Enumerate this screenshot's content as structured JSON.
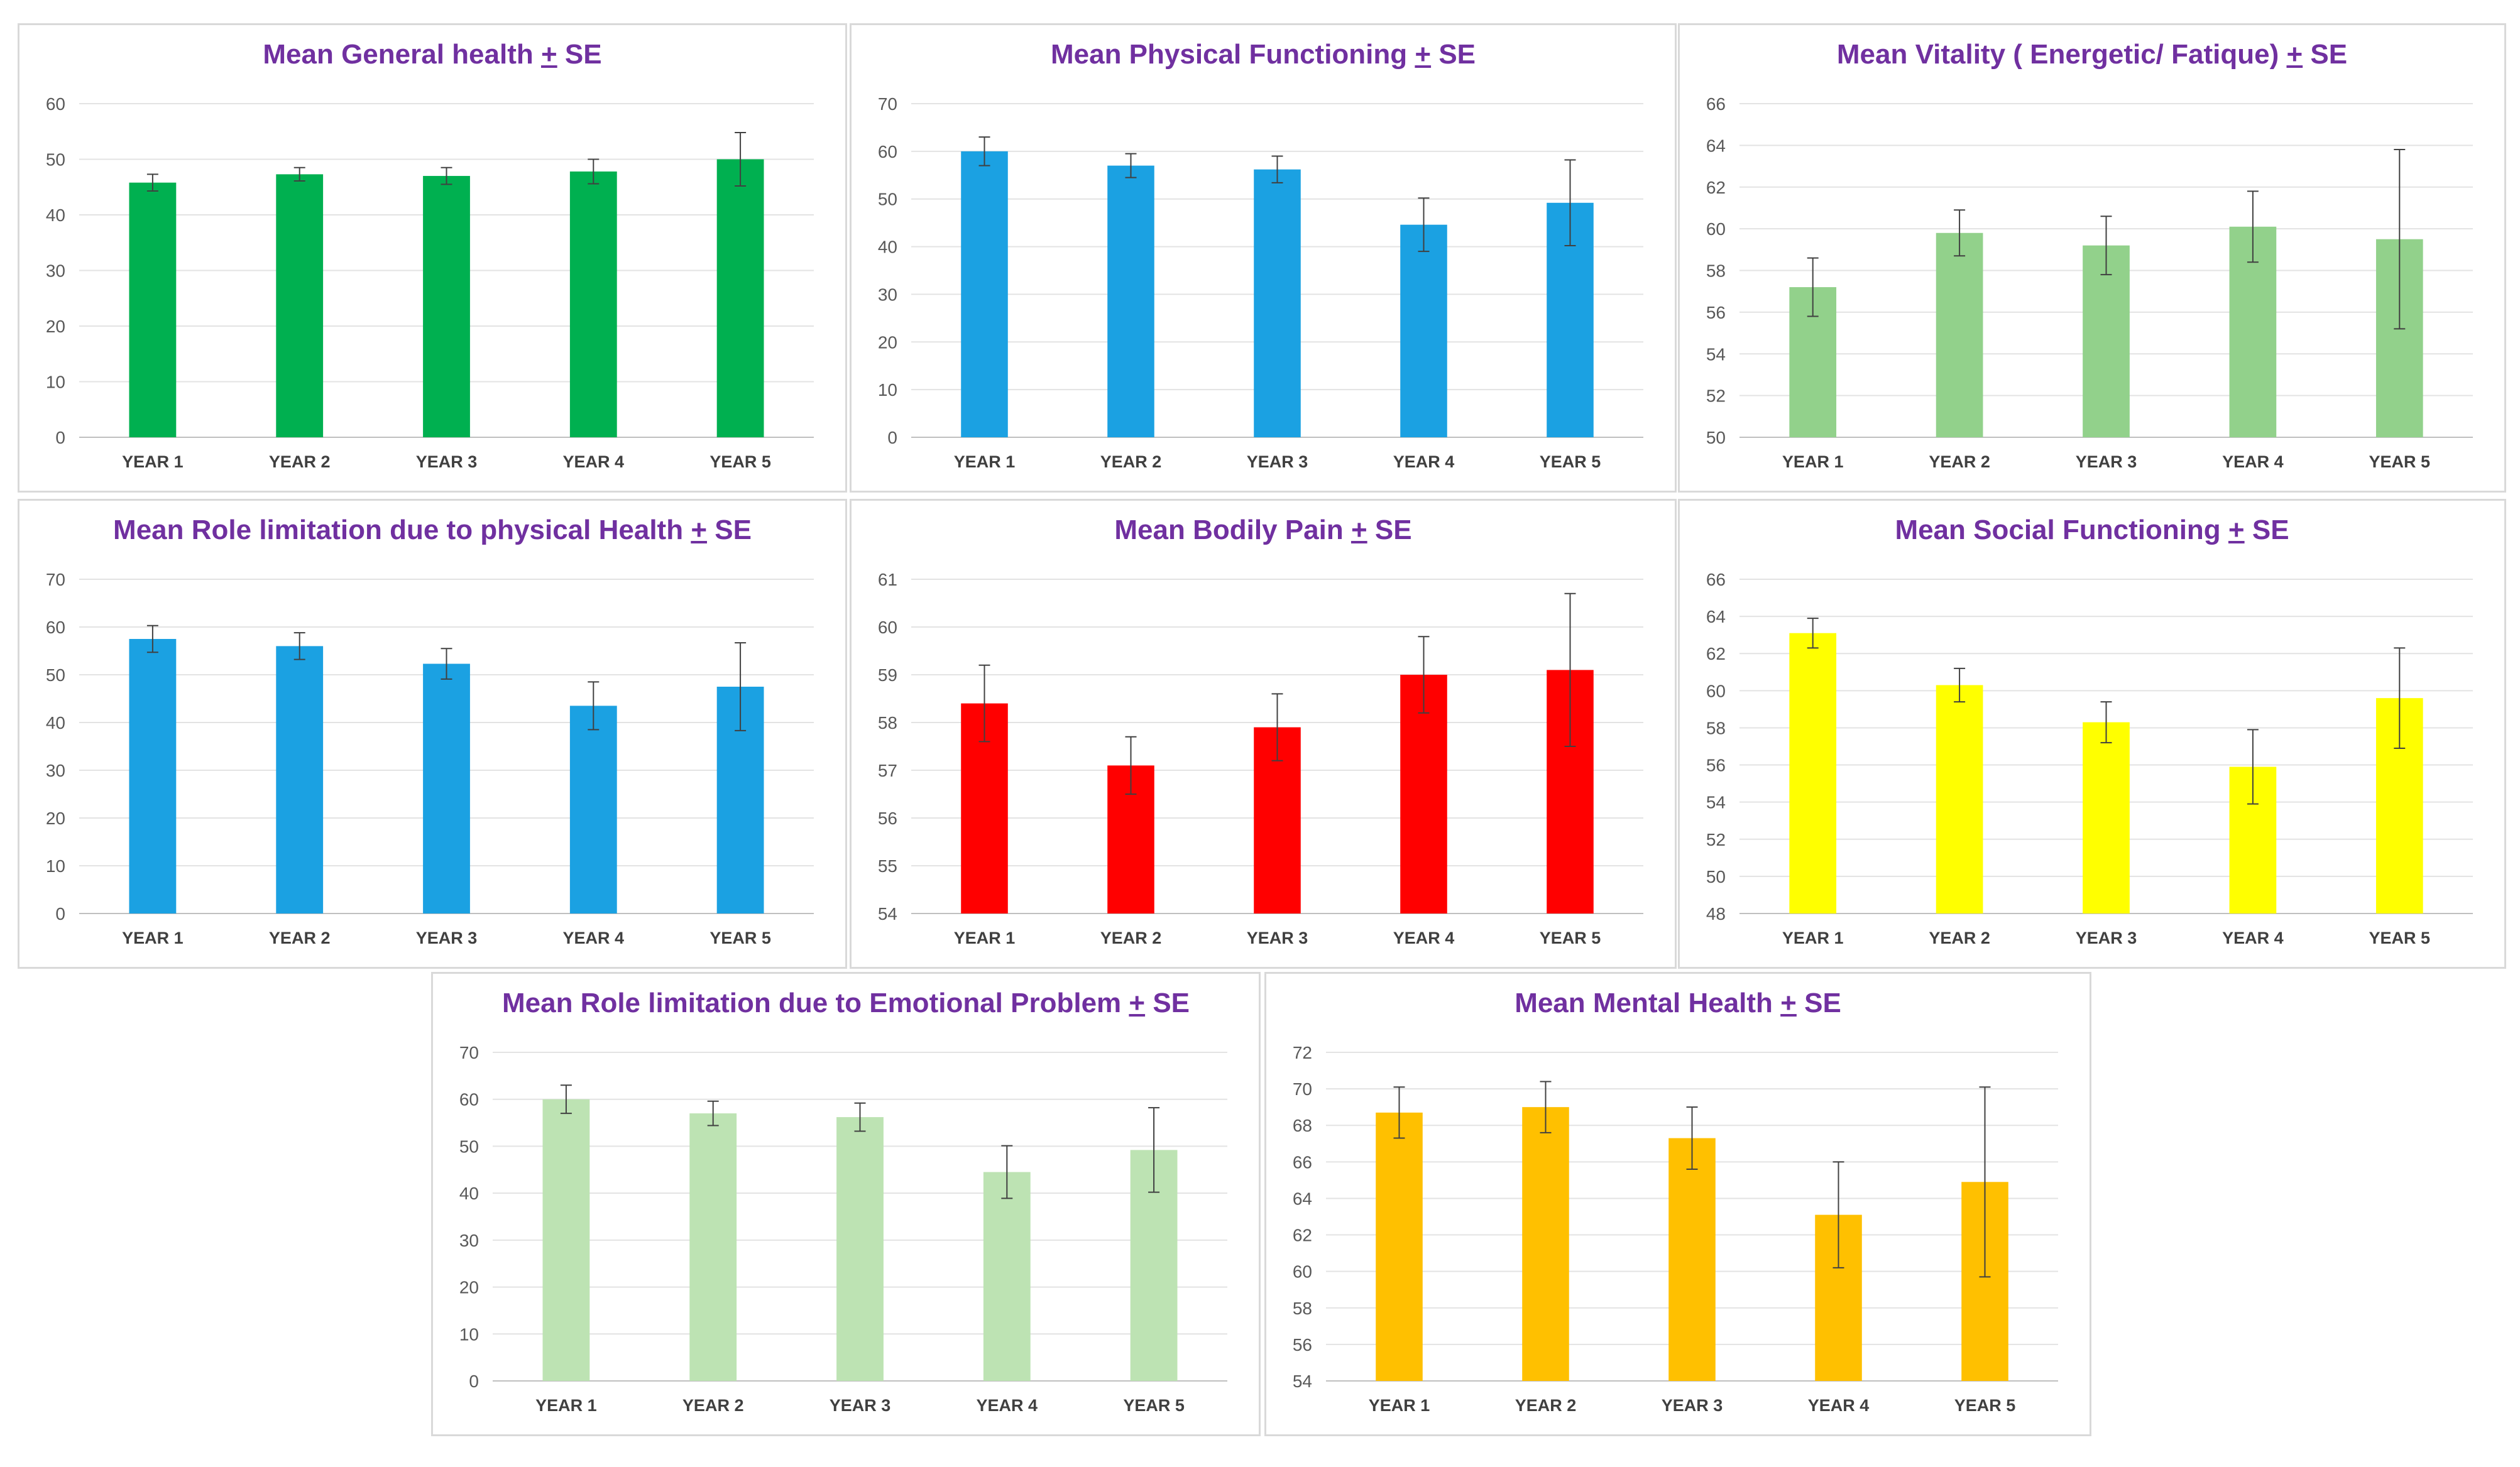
{
  "chart_data": [
    {
      "type": "bar",
      "title": "Mean General health",
      "title_pm": "+",
      "title_se": "SE",
      "categories": [
        "YEAR 1",
        "YEAR 2",
        "YEAR 3",
        "YEAR 4",
        "YEAR 5"
      ],
      "values": [
        45.8,
        47.3,
        47.0,
        47.8,
        50.0
      ],
      "errors": [
        1.5,
        1.2,
        1.5,
        2.2,
        4.8
      ],
      "ylim": [
        0,
        60
      ],
      "yticks": [
        0,
        10,
        20,
        30,
        40,
        50,
        60
      ],
      "color": "#00b050",
      "xlabel": "",
      "ylabel": ""
    },
    {
      "type": "bar",
      "title": "Mean Physical Functioning",
      "title_pm": "+",
      "title_se": "SE",
      "categories": [
        "YEAR 1",
        "YEAR 2",
        "YEAR 3",
        "YEAR 4",
        "YEAR 5"
      ],
      "values": [
        60.0,
        57.0,
        56.2,
        44.6,
        49.2
      ],
      "errors": [
        3.0,
        2.5,
        2.8,
        5.6,
        9.0
      ],
      "ylim": [
        0,
        70
      ],
      "yticks": [
        0,
        10,
        20,
        30,
        40,
        50,
        60,
        70
      ],
      "color": "#1ba1e2",
      "xlabel": "",
      "ylabel": ""
    },
    {
      "type": "bar",
      "title": "Mean Vitality ( Energetic/ Fatique)",
      "title_pm": "+",
      "title_se": "SE",
      "categories": [
        "YEAR 1",
        "YEAR 2",
        "YEAR 3",
        "YEAR 4",
        "YEAR 5"
      ],
      "values": [
        57.2,
        59.8,
        59.2,
        60.1,
        59.5
      ],
      "errors": [
        1.4,
        1.1,
        1.4,
        1.7,
        4.3
      ],
      "ylim": [
        50,
        66
      ],
      "yticks": [
        50,
        52,
        54,
        56,
        58,
        60,
        62,
        64,
        66
      ],
      "color": "#92d18b",
      "xlabel": "",
      "ylabel": ""
    },
    {
      "type": "bar",
      "title": "Mean Role limitation due to physical Health",
      "title_pm": "+",
      "title_se": "SE",
      "categories": [
        "YEAR 1",
        "YEAR 2",
        "YEAR 3",
        "YEAR 4",
        "YEAR 5"
      ],
      "values": [
        57.5,
        56.0,
        52.3,
        43.5,
        47.5
      ],
      "errors": [
        2.8,
        2.8,
        3.2,
        5.0,
        9.2
      ],
      "ylim": [
        0,
        70
      ],
      "yticks": [
        0,
        10,
        20,
        30,
        40,
        50,
        60,
        70
      ],
      "color": "#1ba1e2",
      "xlabel": "",
      "ylabel": ""
    },
    {
      "type": "bar",
      "title": "Mean Bodily Pain",
      "title_pm": "+",
      "title_se": "SE",
      "categories": [
        "YEAR 1",
        "YEAR 2",
        "YEAR 3",
        "YEAR 4",
        "YEAR 5"
      ],
      "values": [
        58.4,
        57.1,
        57.9,
        59.0,
        59.1
      ],
      "errors": [
        0.8,
        0.6,
        0.7,
        0.8,
        1.6
      ],
      "ylim": [
        54,
        61
      ],
      "yticks": [
        54,
        55,
        56,
        57,
        58,
        59,
        60,
        61
      ],
      "color": "#ff0000",
      "xlabel": "",
      "ylabel": ""
    },
    {
      "type": "bar",
      "title": "Mean Social Functioning",
      "title_pm": "+",
      "title_se": "SE",
      "categories": [
        "YEAR 1",
        "YEAR 2",
        "YEAR 3",
        "YEAR 4",
        "YEAR 5"
      ],
      "values": [
        63.1,
        60.3,
        58.3,
        55.9,
        59.6
      ],
      "errors": [
        0.8,
        0.9,
        1.1,
        2.0,
        2.7
      ],
      "ylim": [
        48,
        66
      ],
      "yticks": [
        48,
        50,
        52,
        54,
        56,
        58,
        60,
        62,
        64,
        66
      ],
      "color": "#ffff00",
      "xlabel": "",
      "ylabel": ""
    },
    {
      "type": "bar",
      "title": "Mean Role limitation due to  Emotional Problem",
      "title_pm": "+",
      "title_se": "SE",
      "categories": [
        "YEAR 1",
        "YEAR 2",
        "YEAR 3",
        "YEAR 4",
        "YEAR 5"
      ],
      "values": [
        60.0,
        57.0,
        56.2,
        44.5,
        49.2
      ],
      "errors": [
        3.0,
        2.6,
        3.0,
        5.6,
        9.0
      ],
      "ylim": [
        0,
        70
      ],
      "yticks": [
        0,
        10,
        20,
        30,
        40,
        50,
        60,
        70
      ],
      "color": "#bde3b3",
      "xlabel": "",
      "ylabel": ""
    },
    {
      "type": "bar",
      "title": "Mean Mental Health",
      "title_pm": "+",
      "title_se": "SE",
      "categories": [
        "YEAR 1",
        "YEAR 2",
        "YEAR 3",
        "YEAR 4",
        "YEAR 5"
      ],
      "values": [
        68.7,
        69.0,
        67.3,
        63.1,
        64.9
      ],
      "errors": [
        1.4,
        1.4,
        1.7,
        2.9,
        5.2
      ],
      "ylim": [
        54,
        72
      ],
      "yticks": [
        54,
        56,
        58,
        60,
        62,
        64,
        66,
        68,
        70,
        72
      ],
      "color": "#ffc000",
      "xlabel": "",
      "ylabel": ""
    }
  ]
}
